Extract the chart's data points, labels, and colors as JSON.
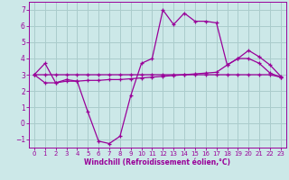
{
  "xlabel": "Windchill (Refroidissement éolien,°C)",
  "bg_color": "#cce8e8",
  "line_color": "#990099",
  "grid_color": "#aacccc",
  "xlim": [
    -0.5,
    23.5
  ],
  "ylim": [
    -1.5,
    7.5
  ],
  "yticks": [
    -1,
    0,
    1,
    2,
    3,
    4,
    5,
    6,
    7
  ],
  "xticks": [
    0,
    1,
    2,
    3,
    4,
    5,
    6,
    7,
    8,
    9,
    10,
    11,
    12,
    13,
    14,
    15,
    16,
    17,
    18,
    19,
    20,
    21,
    22,
    23
  ],
  "line1_x": [
    0,
    1,
    2,
    3,
    4,
    5,
    6,
    7,
    8,
    9,
    10,
    11,
    12,
    13,
    14,
    15,
    16,
    17,
    18,
    19,
    20,
    21,
    22,
    23
  ],
  "line1_y": [
    3.0,
    3.7,
    2.5,
    2.7,
    2.6,
    0.7,
    -1.1,
    -1.25,
    -0.8,
    1.7,
    3.7,
    4.0,
    7.0,
    6.1,
    6.8,
    6.3,
    6.3,
    6.2,
    3.6,
    4.0,
    4.5,
    4.1,
    3.6,
    2.9
  ],
  "line2_x": [
    0,
    1,
    2,
    3,
    4,
    5,
    6,
    7,
    8,
    9,
    10,
    11,
    12,
    13,
    14,
    15,
    16,
    17,
    18,
    19,
    20,
    21,
    22,
    23
  ],
  "line2_y": [
    3.0,
    2.5,
    2.5,
    2.6,
    2.6,
    2.65,
    2.65,
    2.7,
    2.7,
    2.75,
    2.8,
    2.85,
    2.9,
    2.95,
    3.0,
    3.05,
    3.1,
    3.15,
    3.6,
    4.0,
    4.0,
    3.7,
    3.1,
    2.85
  ],
  "line3_x": [
    0,
    1,
    2,
    3,
    4,
    5,
    6,
    7,
    8,
    9,
    10,
    11,
    12,
    13,
    14,
    15,
    16,
    17,
    18,
    19,
    20,
    21,
    22,
    23
  ],
  "line3_y": [
    3.0,
    3.0,
    3.0,
    3.0,
    3.0,
    3.0,
    3.0,
    3.0,
    3.0,
    3.0,
    3.0,
    3.0,
    3.0,
    3.0,
    3.0,
    3.0,
    3.0,
    3.0,
    3.0,
    3.0,
    3.0,
    3.0,
    3.0,
    2.85
  ]
}
